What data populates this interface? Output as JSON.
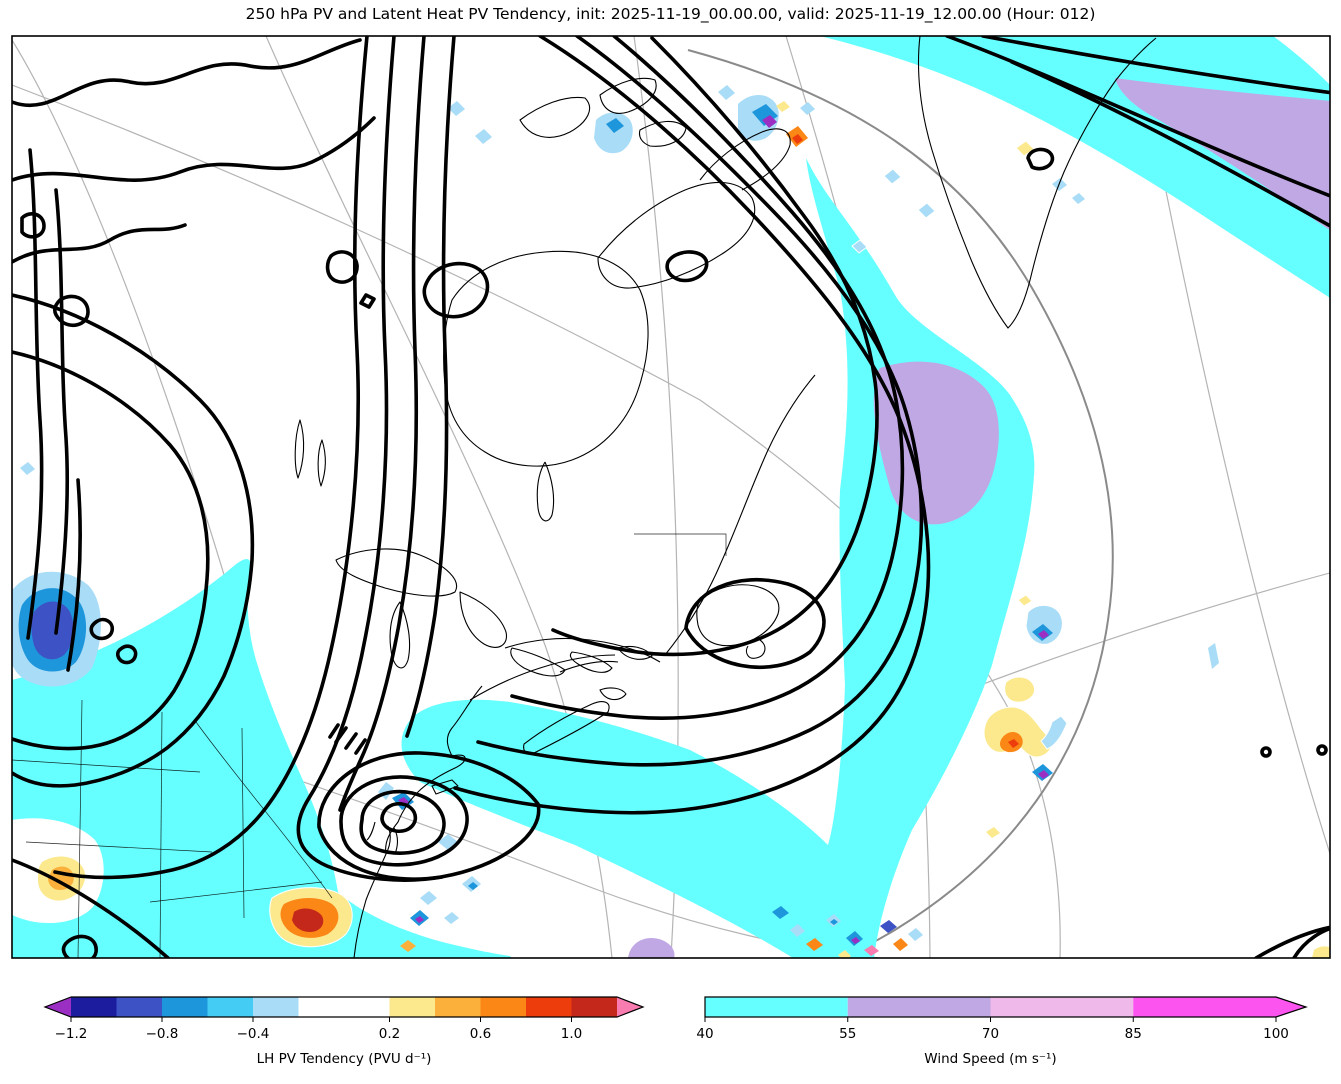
{
  "figure": {
    "title": "250 hPa PV and Latent Heat PV Tendency, init: 2025-11-19_00.00.00, valid: 2025-11-19_12.00.00 (Hour: 012)"
  },
  "chart_data": {
    "type": "heatmap",
    "title": "250 hPa PV and Latent Heat PV Tendency, init: 2025-11-19_00.00.00, valid: 2025-11-19_12.00.00 (Hour: 012)",
    "init_time": "2025-11-19_00.00.00",
    "valid_time": "2025-11-19_12.00.00",
    "forecast_hour": "012",
    "region": "North America, Greenland and the North Atlantic",
    "fields": [
      {
        "name": "250 hPa potential vorticity",
        "style": "thick black contour lines forming a large vortex over northeastern Canada, a cutoff low over the U.S. mid-Atlantic coast, and jet contours across the northeast Atlantic"
      },
      {
        "name": "LH PV Tendency",
        "units": "PVU d⁻¹",
        "style": "filled blue (negative) and yellow-orange-red (positive) patches"
      },
      {
        "name": "Wind Speed",
        "units": "m s⁻¹",
        "style": "cyan and light-purple filled jet bands wrapping around the trough and across the northeast Atlantic"
      }
    ],
    "colorbars": [
      {
        "id": "lh",
        "label": "LH PV Tendency (PVU d⁻¹)",
        "vmin": -1.2,
        "vmax": 1.2,
        "boundaries": [
          -1.2,
          -1.0,
          -0.8,
          -0.6,
          -0.4,
          -0.2,
          0.2,
          0.4,
          0.6,
          0.8,
          1.0,
          1.2
        ],
        "segment_colors": [
          "#1C1C9E",
          "#3D52C4",
          "#1E96DC",
          "#44CCF4",
          "#A8DCF7",
          "#FFFFFF",
          "#FCE98E",
          "#FBB03B",
          "#FB8717",
          "#EE3D0C",
          "#C3281A"
        ],
        "under_color": "#9B2FC4",
        "over_color": "#F87CB0",
        "ticks": [
          -1.2,
          -0.8,
          -0.4,
          0.2,
          0.6,
          1.0
        ],
        "tick_labels": [
          "−1.2",
          "−0.8",
          "−0.4",
          "0.2",
          "0.6",
          "1.0"
        ]
      },
      {
        "id": "wind",
        "label": "Wind Speed (m s⁻¹)",
        "vmin": 40,
        "vmax": 100,
        "boundaries": [
          40,
          55,
          70,
          85,
          100
        ],
        "segment_colors": [
          "#66FFFF",
          "#C0A8E4",
          "#EFB9EA",
          "#FB54EF"
        ],
        "over_color": "#FB54EF",
        "ticks": [
          40,
          55,
          70,
          85,
          100
        ],
        "tick_labels": [
          "40",
          "55",
          "70",
          "85",
          "100"
        ]
      }
    ],
    "layout_hints": {
      "grid": "light gray graticule arcs",
      "legend_position": "two horizontal colorbars below map"
    }
  }
}
